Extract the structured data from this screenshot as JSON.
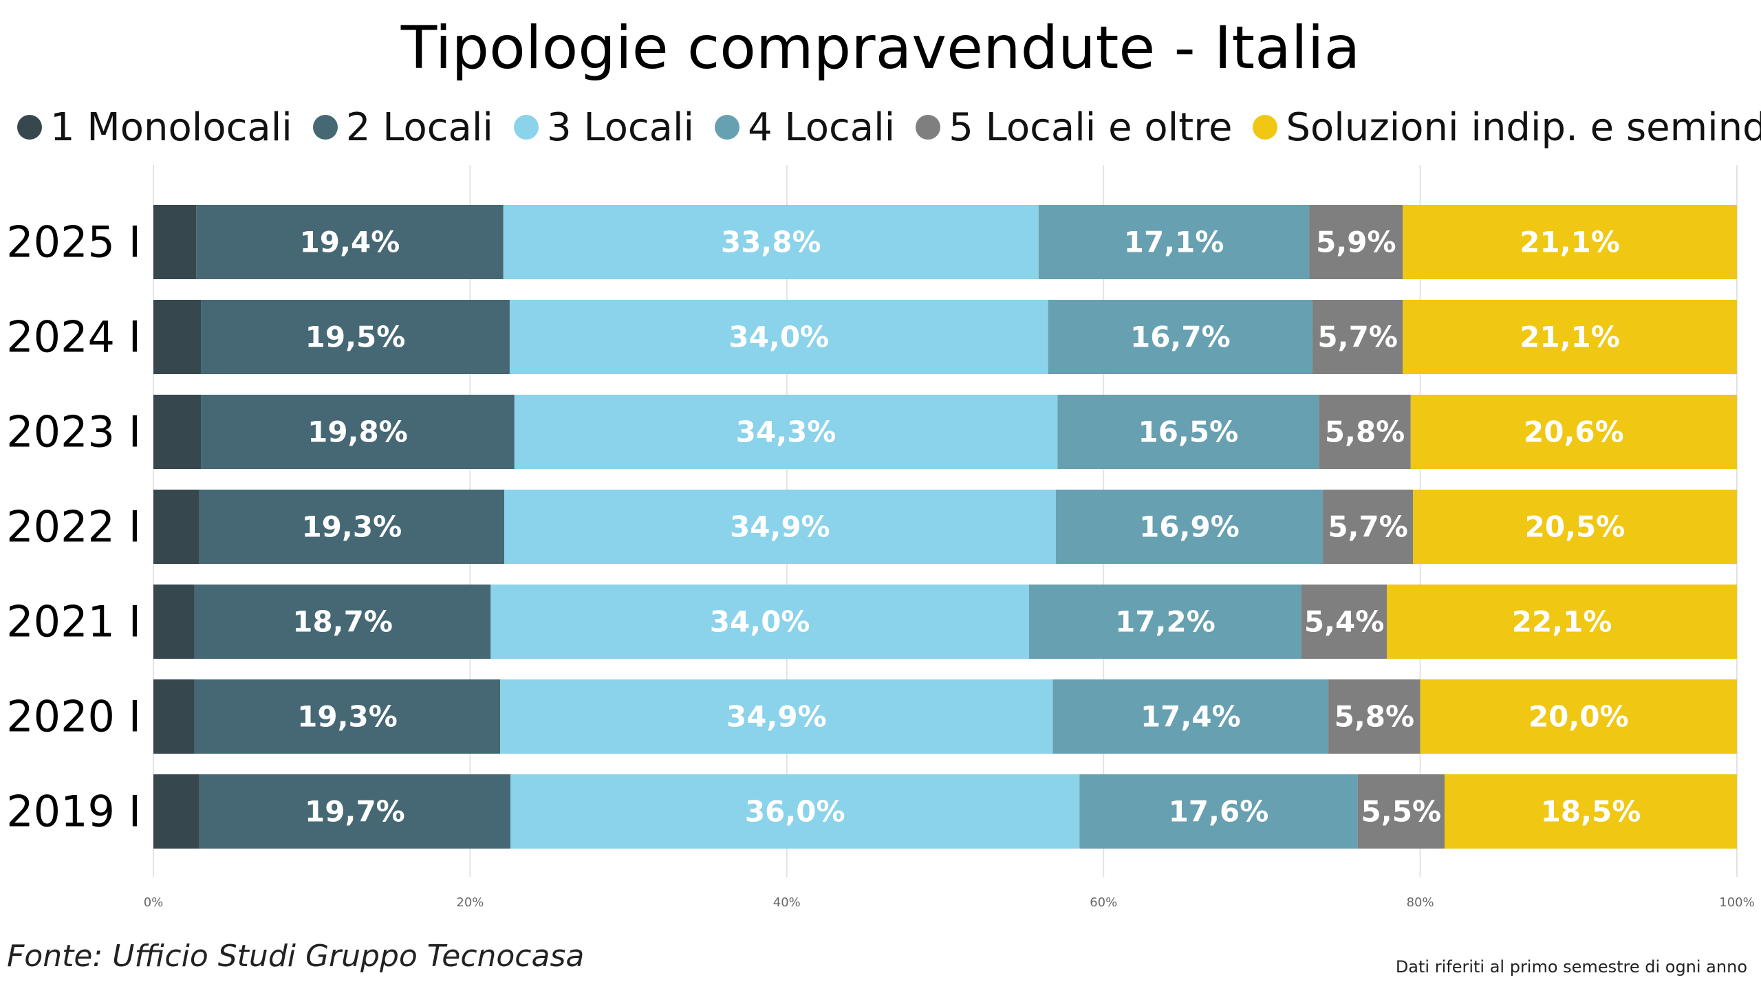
{
  "chart_data": {
    "type": "bar",
    "orientation": "horizontal",
    "stacked": "100%",
    "title": "Tipologie compravendute - Italia",
    "categories": [
      "2025 I",
      "2024 I",
      "2023 I",
      "2022 I",
      "2021 I",
      "2020 I",
      "2019 I"
    ],
    "series": [
      {
        "name": "1 Monolocali",
        "color": "#36474e",
        "values": [
          2.7,
          3.0,
          3.0,
          2.9,
          2.6,
          2.6,
          2.9
        ],
        "labels": [
          "",
          "",
          "",
          "",
          "",
          "",
          ""
        ]
      },
      {
        "name": "2 Locali",
        "color": "#456874",
        "values": [
          19.4,
          19.5,
          19.8,
          19.3,
          18.7,
          19.3,
          19.7
        ],
        "labels": [
          "19,4%",
          "19,5%",
          "19,8%",
          "19,3%",
          "18,7%",
          "19,3%",
          "19,7%"
        ]
      },
      {
        "name": "3 Locali",
        "color": "#8ad3ea",
        "values": [
          33.8,
          34.0,
          34.3,
          34.9,
          34.0,
          34.9,
          36.0
        ],
        "labels": [
          "33,8%",
          "34,0%",
          "34,3%",
          "34,9%",
          "34,0%",
          "34,9%",
          "36,0%"
        ]
      },
      {
        "name": "4 Locali",
        "color": "#67a0b1",
        "values": [
          17.1,
          16.7,
          16.5,
          16.9,
          17.2,
          17.4,
          17.6
        ],
        "labels": [
          "17,1%",
          "16,7%",
          "16,5%",
          "16,9%",
          "17,2%",
          "17,4%",
          "17,6%"
        ]
      },
      {
        "name": "5 Locali e oltre",
        "color": "#7f7f7f",
        "values": [
          5.9,
          5.7,
          5.8,
          5.7,
          5.4,
          5.8,
          5.5
        ],
        "labels": [
          "5,9%",
          "5,7%",
          "5,8%",
          "5,7%",
          "5,4%",
          "5,8%",
          "5,5%"
        ]
      },
      {
        "name": "Soluzioni indip. e semindip.",
        "color": "#f0c712",
        "values": [
          21.1,
          21.1,
          20.6,
          20.5,
          22.1,
          20.0,
          18.5
        ],
        "labels": [
          "21,1%",
          "21,1%",
          "20,6%",
          "20,5%",
          "22,1%",
          "20,0%",
          "18,5%"
        ]
      }
    ],
    "x_ticks": [
      "0%",
      "20%",
      "40%",
      "60%",
      "80%",
      "100%"
    ],
    "xlim": [
      0,
      100
    ],
    "grid": true,
    "legend_position": "top",
    "label_color": "#ffffff",
    "source": "Fonte: Ufficio Studi Gruppo Tecnocasa",
    "note": "Dati riferiti al primo semestre di ogni anno"
  }
}
